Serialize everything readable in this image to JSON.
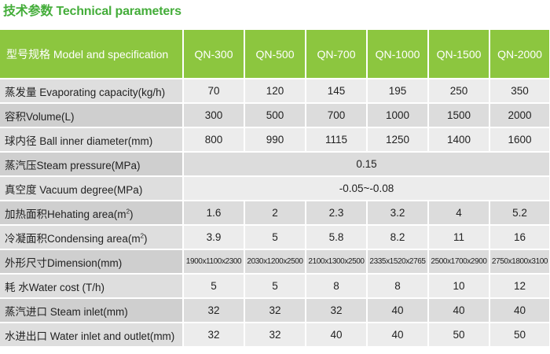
{
  "title": "技术参数 Technical parameters",
  "header": {
    "label": "型号规格 Model and specification",
    "models": [
      "QN-300",
      "QN-500",
      "QN-700",
      "QN-1000",
      "QN-1500",
      "QN-2000"
    ]
  },
  "rows": [
    {
      "label": "蒸发量 Evaporating capacity(kg/h)",
      "values": [
        "70",
        "120",
        "145",
        "195",
        "250",
        "350"
      ]
    },
    {
      "label": "容积Volume(L)",
      "values": [
        "300",
        "500",
        "700",
        "1000",
        "1500",
        "2000"
      ]
    },
    {
      "label": "球内径 Ball inner diameter(mm)",
      "values": [
        "800",
        "990",
        "1115",
        "1250",
        "1400",
        "1600"
      ]
    },
    {
      "label": "蒸汽压Steam pressure(MPa)",
      "merged": "0.15"
    },
    {
      "label": "真空度 Vacuum degree(MPa)",
      "merged": "-0.05~-0.08"
    },
    {
      "label": "加热面积Hehating area(m",
      "sup": "2",
      "label_end": ")",
      "values": [
        "1.6",
        "2",
        "2.3",
        "3.2",
        "4",
        "5.2"
      ]
    },
    {
      "label": "冷凝面积Condensing area(m",
      "sup": "2",
      "label_end": ")",
      "values": [
        "3.9",
        "5",
        "5.8",
        "8.2",
        "11",
        "16"
      ]
    },
    {
      "label": "外形尺寸Dimension(mm)",
      "small": true,
      "values": [
        "1900x1100x2300",
        "2030x1200x2500",
        "2100x1300x2500",
        "2335x1520x2765",
        "2500x1700x2900",
        "2750x1800x3100"
      ]
    },
    {
      "label": "耗 水Water cost (T/h)",
      "values": [
        "5",
        "5",
        "8",
        "8",
        "10",
        "12"
      ]
    },
    {
      "label": "蒸汽进口 Steam inlet(mm)",
      "values": [
        "32",
        "32",
        "32",
        "40",
        "40",
        "40"
      ]
    },
    {
      "label": "水进出口 Water inlet and outlet(mm)",
      "values": [
        "32",
        "32",
        "40",
        "40",
        "50",
        "50"
      ]
    }
  ],
  "colors": {
    "accent": "#8cc63f",
    "title": "#44ad3a"
  }
}
